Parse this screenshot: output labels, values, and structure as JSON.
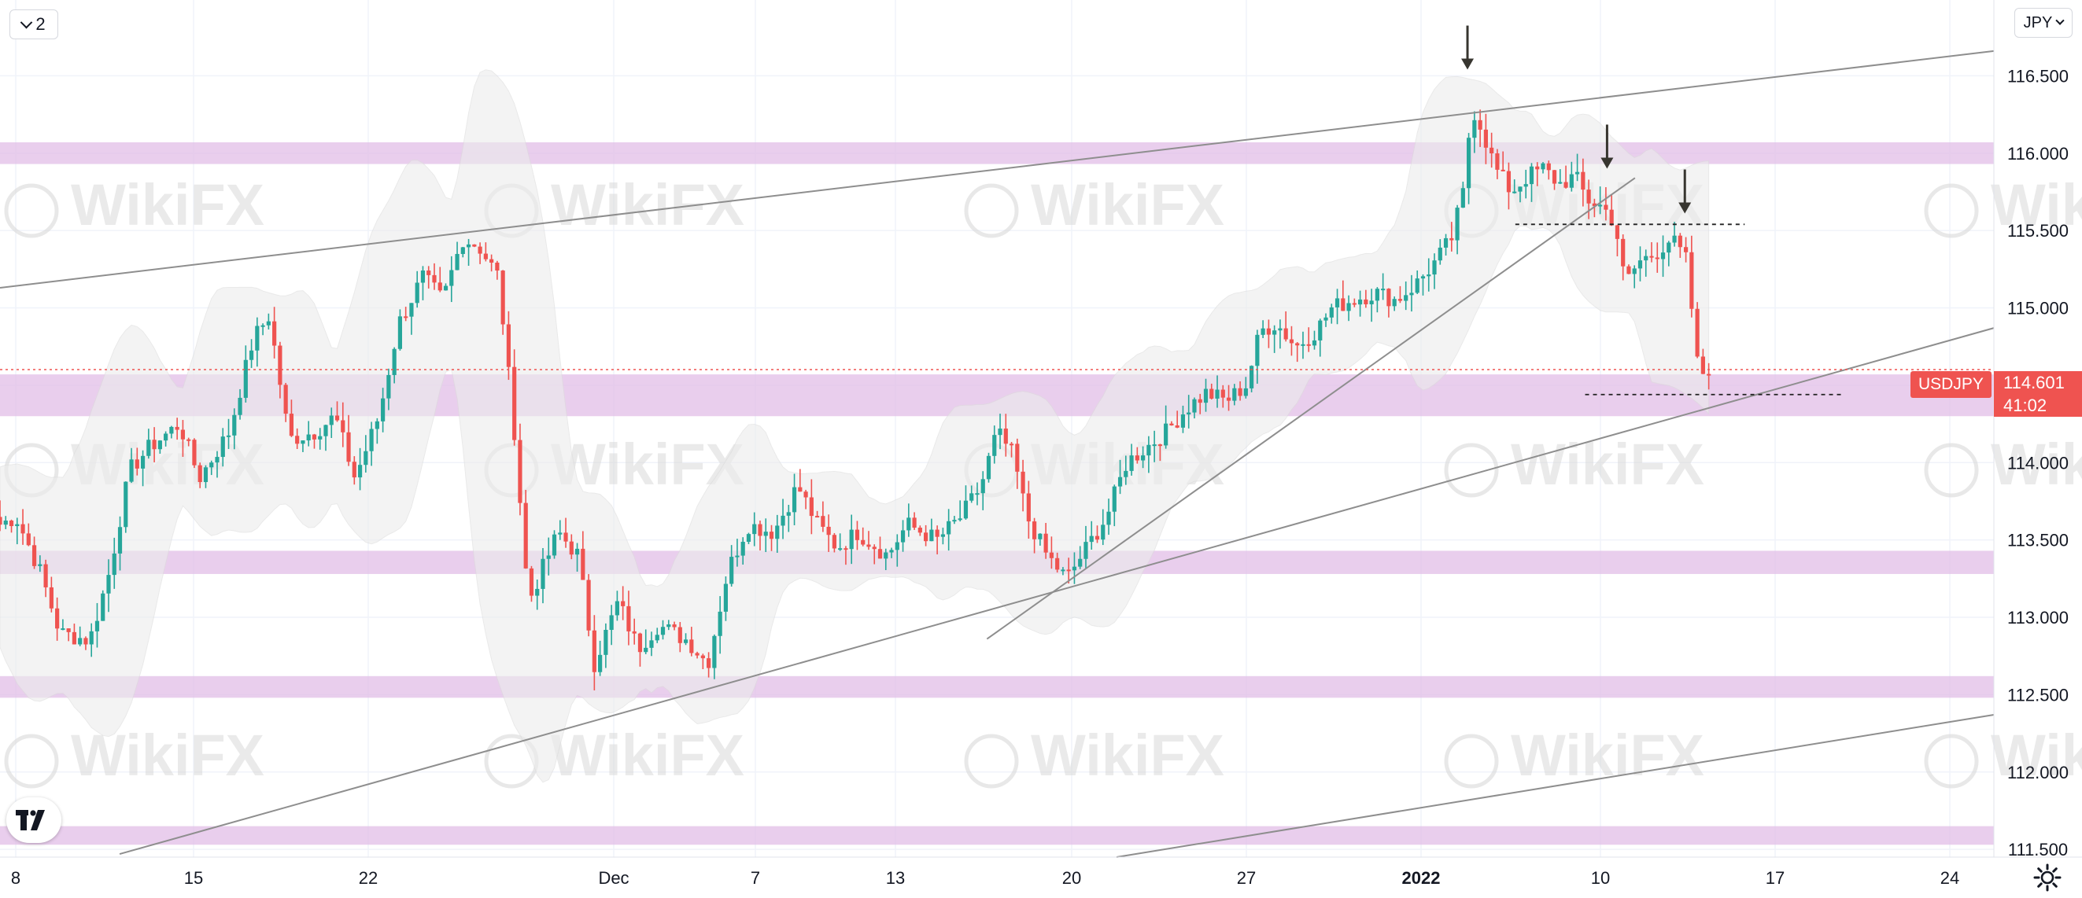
{
  "toolbar": {
    "series_count": "2",
    "currency": "JPY",
    "symbol": "USDJPY"
  },
  "price_tag": {
    "price": "114.601",
    "countdown": "41:02"
  },
  "colors": {
    "up": "#26a69a",
    "down": "#ef5350",
    "zone": "#e1bee7",
    "grid": "#f0f3fa",
    "trendline": "#8e8e8e",
    "band": "#ececec",
    "arrow": "#37352f",
    "watermark": "#d9d9d9"
  },
  "watermark_text": "WikiFX",
  "chart_data": {
    "type": "candlestick",
    "symbol": "USDJPY",
    "yaxis": {
      "ticks": [
        "116.500",
        "116.000",
        "115.500",
        "115.000",
        "114.500",
        "114.000",
        "113.500",
        "113.000",
        "112.500",
        "112.000",
        "111.500"
      ],
      "ylim": [
        111.45,
        116.99
      ]
    },
    "xaxis": {
      "ticks": [
        "8",
        "15",
        "22",
        "Dec",
        "7",
        "13",
        "20",
        "27",
        "2022",
        "10",
        "17",
        "24"
      ]
    },
    "current_price": 114.601,
    "countdown": "41:02",
    "horizontal_zones": [
      {
        "from": 115.93,
        "to": 116.07
      },
      {
        "from": 114.3,
        "to": 114.57
      },
      {
        "from": 113.28,
        "to": 113.43
      },
      {
        "from": 112.48,
        "to": 112.62
      },
      {
        "from": 111.53,
        "to": 111.65
      }
    ],
    "trend_lines": [
      {
        "from": [
          0,
          115.13
        ],
        "to": [
          1,
          116.66
        ]
      },
      {
        "from": [
          0.06,
          111.47
        ],
        "to": [
          1,
          114.87
        ]
      },
      {
        "from": [
          0.495,
          112.86
        ],
        "to": [
          0.82,
          115.84
        ]
      },
      {
        "from": [
          0.56,
          111.45
        ],
        "to": [
          1,
          112.37
        ]
      }
    ],
    "dashed_levels": [
      {
        "y": 115.54,
        "from": 0.76,
        "to": 0.875
      },
      {
        "y": 114.44,
        "from": 0.795,
        "to": 0.925
      }
    ],
    "markers": [
      {
        "type": "arrow-down",
        "x": 0.736,
        "y": 116.54
      },
      {
        "type": "arrow-down",
        "x": 0.806,
        "y": 115.9
      },
      {
        "type": "arrow-down",
        "x": 0.845,
        "y": 115.61
      }
    ],
    "series": [
      {
        "name": "USDJPY",
        "key_closes": [
          [
            0,
            113.6
          ],
          [
            0.008,
            113.65
          ],
          [
            0.02,
            113.3
          ],
          [
            0.03,
            112.9
          ],
          [
            0.045,
            112.85
          ],
          [
            0.055,
            113.3
          ],
          [
            0.065,
            113.95
          ],
          [
            0.075,
            114.1
          ],
          [
            0.09,
            114.25
          ],
          [
            0.1,
            113.9
          ],
          [
            0.115,
            114.2
          ],
          [
            0.127,
            114.8
          ],
          [
            0.135,
            114.95
          ],
          [
            0.145,
            114.15
          ],
          [
            0.158,
            114.2
          ],
          [
            0.168,
            114.3
          ],
          [
            0.178,
            113.9
          ],
          [
            0.19,
            114.3
          ],
          [
            0.2,
            114.9
          ],
          [
            0.212,
            115.2
          ],
          [
            0.222,
            115.05
          ],
          [
            0.232,
            115.45
          ],
          [
            0.24,
            115.4
          ],
          [
            0.25,
            115.2
          ],
          [
            0.258,
            114.2
          ],
          [
            0.265,
            113.1
          ],
          [
            0.28,
            113.55
          ],
          [
            0.29,
            113.4
          ],
          [
            0.298,
            112.7
          ],
          [
            0.31,
            113.1
          ],
          [
            0.32,
            112.8
          ],
          [
            0.33,
            112.95
          ],
          [
            0.345,
            112.85
          ],
          [
            0.355,
            112.7
          ],
          [
            0.365,
            113.3
          ],
          [
            0.375,
            113.6
          ],
          [
            0.388,
            113.55
          ],
          [
            0.4,
            113.85
          ],
          [
            0.41,
            113.6
          ],
          [
            0.42,
            113.45
          ],
          [
            0.43,
            113.55
          ],
          [
            0.445,
            113.4
          ],
          [
            0.455,
            113.6
          ],
          [
            0.47,
            113.5
          ],
          [
            0.482,
            113.65
          ],
          [
            0.492,
            113.85
          ],
          [
            0.5,
            114.2
          ],
          [
            0.508,
            114.05
          ],
          [
            0.515,
            113.65
          ],
          [
            0.525,
            113.4
          ],
          [
            0.535,
            113.25
          ],
          [
            0.545,
            113.45
          ],
          [
            0.555,
            113.65
          ],
          [
            0.565,
            114.0
          ],
          [
            0.575,
            114.1
          ],
          [
            0.585,
            114.2
          ],
          [
            0.595,
            114.35
          ],
          [
            0.605,
            114.45
          ],
          [
            0.615,
            114.4
          ],
          [
            0.625,
            114.5
          ],
          [
            0.632,
            114.85
          ],
          [
            0.64,
            114.9
          ],
          [
            0.65,
            114.75
          ],
          [
            0.66,
            114.85
          ],
          [
            0.668,
            115.0
          ],
          [
            0.678,
            115.05
          ],
          [
            0.69,
            115.1
          ],
          [
            0.7,
            115.05
          ],
          [
            0.71,
            115.15
          ],
          [
            0.72,
            115.3
          ],
          [
            0.728,
            115.45
          ],
          [
            0.734,
            115.75
          ],
          [
            0.738,
            116.3
          ],
          [
            0.742,
            116.2
          ],
          [
            0.75,
            115.9
          ],
          [
            0.758,
            115.75
          ],
          [
            0.766,
            115.85
          ],
          [
            0.774,
            115.9
          ],
          [
            0.782,
            115.8
          ],
          [
            0.79,
            115.85
          ],
          [
            0.796,
            115.7
          ],
          [
            0.804,
            115.65
          ],
          [
            0.81,
            115.55
          ],
          [
            0.815,
            115.15
          ],
          [
            0.822,
            115.3
          ],
          [
            0.83,
            115.35
          ],
          [
            0.838,
            115.45
          ],
          [
            0.846,
            115.3
          ],
          [
            0.852,
            114.55
          ],
          [
            0.857,
            114.62
          ]
        ]
      }
    ]
  }
}
